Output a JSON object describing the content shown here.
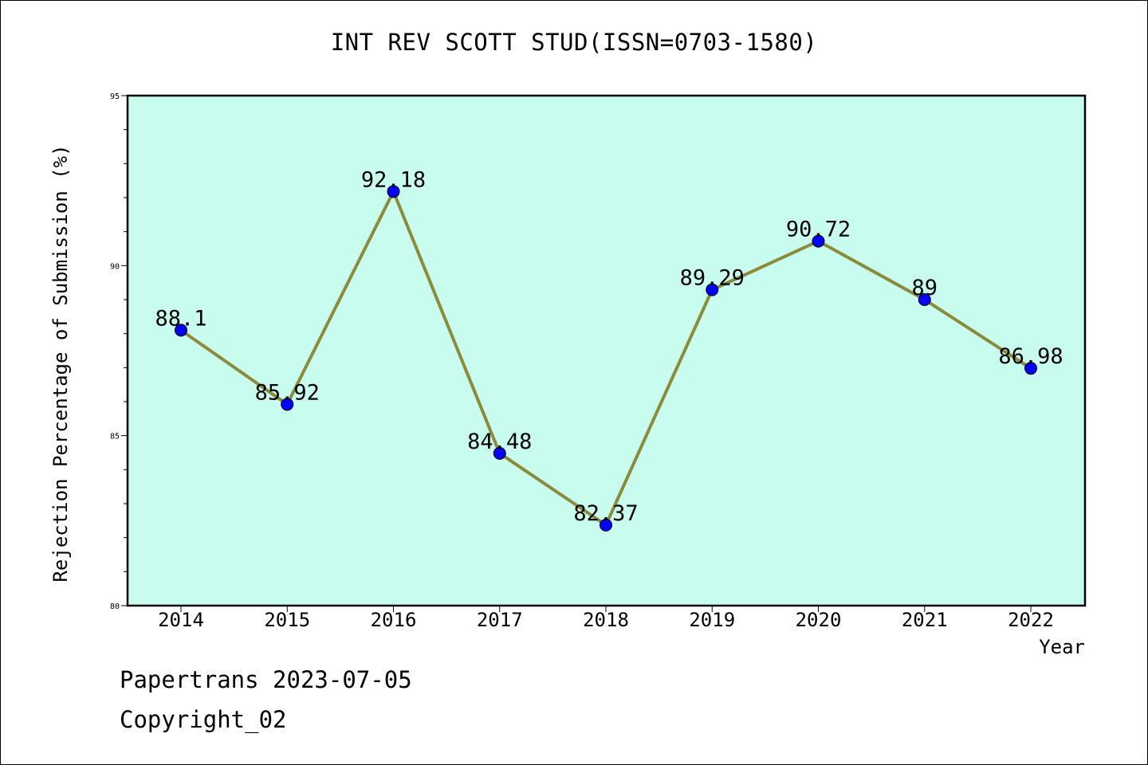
{
  "chart_data": {
    "type": "line",
    "title": "INT REV SCOTT STUD(ISSN=0703-1580)",
    "xlabel": "Year",
    "ylabel": "Rejection Percentage of Submission (%)",
    "categories": [
      "2014",
      "2015",
      "2016",
      "2017",
      "2018",
      "2019",
      "2020",
      "2021",
      "2022"
    ],
    "series": [
      {
        "values": [
          88.1,
          85.92,
          92.18,
          84.48,
          82.37,
          89.29,
          90.72,
          89,
          86.98
        ],
        "labels": [
          "88.1",
          "85.92",
          "92.18",
          "84.48",
          "82.37",
          "89.29",
          "90.72",
          "89",
          "86.98"
        ]
      }
    ],
    "ylim": [
      80,
      95
    ],
    "yticks": [
      "80",
      "85",
      "90",
      "95"
    ],
    "grid": false,
    "legend": "none",
    "colors": {
      "plot_background": "#c8fcee",
      "line": "#8b8b3a",
      "marker": "#0000ff"
    }
  },
  "footer": {
    "date_line": "Papertrans 2023-07-05",
    "copyright": "Copyright_02"
  }
}
